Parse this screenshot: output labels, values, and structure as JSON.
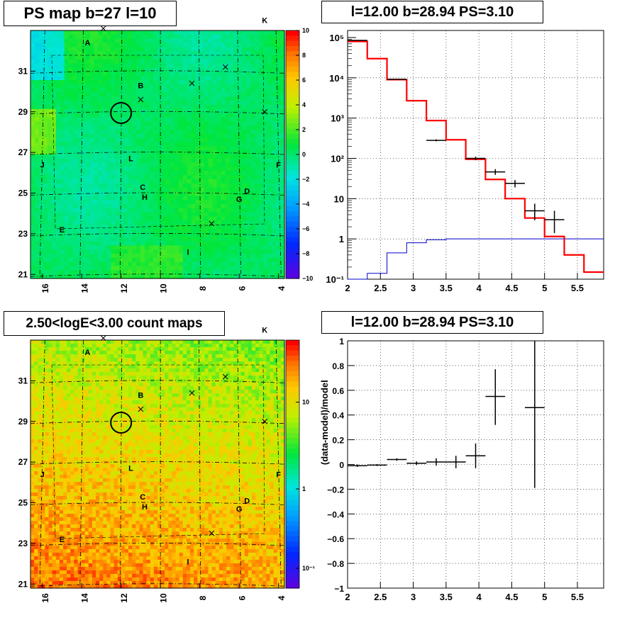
{
  "panels": {
    "map_ps": {
      "title": "PS map b=27 l=10"
    },
    "map_counts": {
      "title": "2.50<logE<3.00 count maps"
    },
    "spectrum": {
      "title": "l=12.00 b=28.94 PS=3.10"
    },
    "residual": {
      "title": "l=12.00 b=28.94 PS=3.10"
    }
  },
  "colors": {
    "data": "#000000",
    "model": "#ff0000",
    "background_model": "#0000cc",
    "ps_map_base": "#33e033",
    "count_map_base": "#f0a020"
  },
  "map_axes": {
    "x_ticks": [
      "16",
      "14",
      "12",
      "10",
      "8",
      "6",
      "4"
    ],
    "y_ticks": [
      "31",
      "29",
      "27",
      "25",
      "23",
      "21"
    ],
    "x_range": [
      16.6,
      3.7
    ],
    "y_range": [
      20.8,
      33.0
    ]
  },
  "sources": [
    {
      "label": "A",
      "l": 13.7,
      "b": 32.4
    },
    {
      "label": "B",
      "l": 11.0,
      "b": 30.3
    },
    {
      "label": "C",
      "l": 10.9,
      "b": 25.3
    },
    {
      "label": "D",
      "l": 5.6,
      "b": 25.1
    },
    {
      "label": "E",
      "l": 15.0,
      "b": 23.2
    },
    {
      "label": "F",
      "l": 4.0,
      "b": 26.4
    },
    {
      "label": "G",
      "l": 6.0,
      "b": 24.7
    },
    {
      "label": "H",
      "l": 10.8,
      "b": 24.8
    },
    {
      "label": "I",
      "l": 8.6,
      "b": 22.1
    },
    {
      "label": "J",
      "l": 16.0,
      "b": 26.4
    },
    {
      "label": "K",
      "l": 4.7,
      "b": 33.5
    },
    {
      "label": "L",
      "l": 11.5,
      "b": 26.7
    }
  ],
  "crosses": [
    {
      "l": 12.9,
      "b": 33.1
    },
    {
      "l": 11.0,
      "b": 29.6
    },
    {
      "l": 8.4,
      "b": 30.4
    },
    {
      "l": 6.7,
      "b": 31.2
    },
    {
      "l": 4.7,
      "b": 29.0
    },
    {
      "l": 7.4,
      "b": 23.5
    }
  ],
  "target_circle": {
    "l": 12.0,
    "b": 28.94
  },
  "map_ps": {
    "colorbar_ticks": [
      "10",
      "8",
      "6",
      "4",
      "2",
      "0",
      "−2",
      "−4",
      "−6",
      "−8",
      "−10"
    ],
    "z_range": [
      -10,
      10
    ]
  },
  "map_counts": {
    "colorbar_ticks": [
      "10",
      "1",
      "10⁻¹"
    ],
    "z_range_log": [
      -1.3,
      1.5
    ]
  },
  "chart_data": [
    {
      "type": "line",
      "panel": "spectrum",
      "title": "l=12.00 b=28.94 PS=3.10",
      "xlim": [
        2,
        5.9
      ],
      "ylim": [
        0.1,
        150000
      ],
      "yscale": "log",
      "x_ticks": [
        "2",
        "2.5",
        "3",
        "3.5",
        "4",
        "4.5",
        "5",
        "5.5"
      ],
      "y_ticks": [
        "10⁵",
        "10⁴",
        "10³",
        "10²",
        "10",
        "1",
        "10⁻¹"
      ],
      "grid": true,
      "bin_edges": [
        2.0,
        2.3,
        2.6,
        2.9,
        3.2,
        3.5,
        3.8,
        4.1,
        4.4,
        4.7,
        5.0,
        5.3,
        5.6,
        5.9
      ],
      "series": [
        {
          "role": "model",
          "values": [
            80000,
            30000,
            9000,
            2700,
            870,
            290,
            95,
            30,
            10,
            3.3,
            1.15,
            0.4,
            0.15
          ]
        },
        {
          "role": "background",
          "values": [
            0.09,
            0.14,
            0.45,
            0.8,
            0.95,
            1.0,
            1.0,
            1.0,
            1.0,
            1.0,
            1.0,
            1.0,
            1.0
          ]
        },
        {
          "role": "data",
          "points": [
            {
              "x": 2.15,
              "y": 85000,
              "xerr": 0.15,
              "ylo": 84500,
              "yhi": 85500
            },
            {
              "x": 2.75,
              "y": 9200,
              "xerr": 0.15,
              "ylo": 9050,
              "yhi": 9350
            },
            {
              "x": 3.35,
              "y": 280,
              "xerr": 0.15,
              "ylo": 265,
              "yhi": 296
            },
            {
              "x": 3.95,
              "y": 100,
              "xerr": 0.15,
              "ylo": 90,
              "yhi": 110
            },
            {
              "x": 4.25,
              "y": 46,
              "xerr": 0.15,
              "ylo": 39,
              "yhi": 54
            },
            {
              "x": 4.55,
              "y": 24,
              "xerr": 0.15,
              "ylo": 19,
              "yhi": 29
            },
            {
              "x": 4.85,
              "y": 5,
              "xerr": 0.15,
              "ylo": 2.9,
              "yhi": 7.5
            },
            {
              "x": 5.15,
              "y": 3.0,
              "xerr": 0.15,
              "ylo": 1.4,
              "yhi": 5.0
            }
          ]
        }
      ]
    },
    {
      "type": "scatter",
      "panel": "residual",
      "title": "l=12.00 b=28.94 PS=3.10",
      "ylabel": "(data-model)/model",
      "xlim": [
        2,
        5.9
      ],
      "ylim": [
        -1,
        1
      ],
      "x_ticks": [
        "2",
        "2.5",
        "3",
        "3.5",
        "4",
        "4.5",
        "5",
        "5.5"
      ],
      "y_ticks": [
        "1",
        "0.8",
        "0.6",
        "0.4",
        "0.2",
        "0",
        "−0.2",
        "−0.4",
        "−0.6",
        "−0.8",
        "−1"
      ],
      "grid": true,
      "points": [
        {
          "x": 2.15,
          "y": -0.01,
          "xerr": 0.15,
          "ylo": -0.02,
          "yhi": 0.0
        },
        {
          "x": 2.45,
          "y": -0.005,
          "xerr": 0.15,
          "ylo": -0.012,
          "yhi": 0.002
        },
        {
          "x": 2.75,
          "y": 0.04,
          "xerr": 0.15,
          "ylo": 0.03,
          "yhi": 0.05
        },
        {
          "x": 3.05,
          "y": 0.01,
          "xerr": 0.15,
          "ylo": -0.005,
          "yhi": 0.025
        },
        {
          "x": 3.35,
          "y": 0.02,
          "xerr": 0.15,
          "ylo": -0.01,
          "yhi": 0.05
        },
        {
          "x": 3.65,
          "y": 0.02,
          "xerr": 0.15,
          "ylo": -0.03,
          "yhi": 0.07
        },
        {
          "x": 3.95,
          "y": 0.07,
          "xerr": 0.15,
          "ylo": -0.03,
          "yhi": 0.17
        },
        {
          "x": 4.25,
          "y": 0.55,
          "xerr": 0.15,
          "ylo": 0.32,
          "yhi": 0.77
        },
        {
          "x": 4.85,
          "y": 0.46,
          "xerr": 0.15,
          "ylo": -0.19,
          "yhi": 1.0
        }
      ]
    }
  ]
}
